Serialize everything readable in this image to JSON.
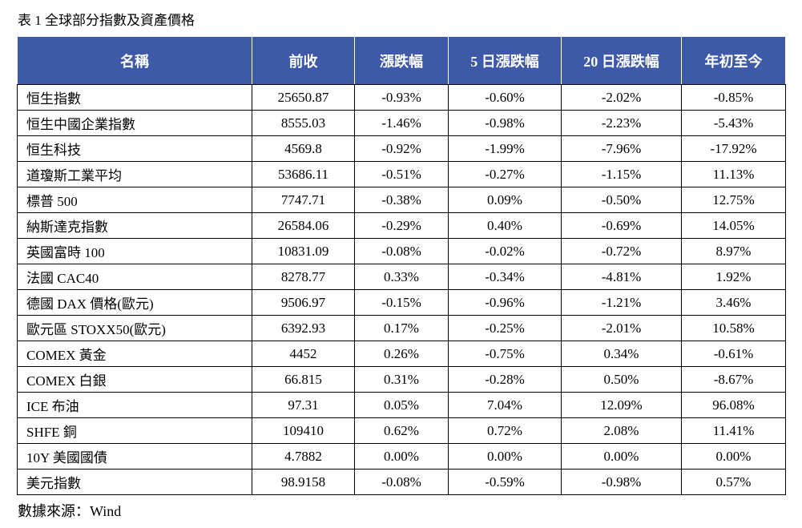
{
  "caption": "表 1 全球部分指數及資產價格",
  "headers": [
    "名稱",
    "前收",
    "漲跌幅",
    "5 日漲跌幅",
    "20 日漲跌幅",
    "年初至今"
  ],
  "rows": [
    [
      "恒生指數",
      "25650.87",
      "-0.93%",
      "-0.60%",
      "-2.02%",
      "-0.85%"
    ],
    [
      "恒生中國企業指數",
      "8555.03",
      "-1.46%",
      "-0.98%",
      "-2.23%",
      "-5.43%"
    ],
    [
      "恒生科技",
      "4569.8",
      "-0.92%",
      "-1.99%",
      "-7.96%",
      "-17.92%"
    ],
    [
      "道瓊斯工業平均",
      "53686.11",
      "-0.51%",
      "-0.27%",
      "-1.15%",
      "11.13%"
    ],
    [
      "標普 500",
      "7747.71",
      "-0.38%",
      "0.09%",
      "-0.50%",
      "12.75%"
    ],
    [
      "納斯達克指數",
      "26584.06",
      "-0.29%",
      "0.40%",
      "-0.69%",
      "14.05%"
    ],
    [
      "英國富時 100",
      "10831.09",
      "-0.08%",
      "-0.02%",
      "-0.72%",
      "8.97%"
    ],
    [
      "法國 CAC40",
      "8278.77",
      "0.33%",
      "-0.34%",
      "-4.81%",
      "1.92%"
    ],
    [
      "德國 DAX 價格(歐元)",
      "9506.97",
      "-0.15%",
      "-0.96%",
      "-1.21%",
      "3.46%"
    ],
    [
      "歐元區 STOXX50(歐元)",
      "6392.93",
      "0.17%",
      "-0.25%",
      "-2.01%",
      "10.58%"
    ],
    [
      "COMEX 黃金",
      "4452",
      "0.26%",
      "-0.75%",
      "0.34%",
      "-0.61%"
    ],
    [
      "COMEX 白銀",
      "66.815",
      "0.31%",
      "-0.28%",
      "0.50%",
      "-8.67%"
    ],
    [
      "ICE 布油",
      "97.31",
      "0.05%",
      "7.04%",
      "12.09%",
      "96.08%"
    ],
    [
      "SHFE 銅",
      "109410",
      "0.62%",
      "0.72%",
      "2.08%",
      "11.41%"
    ],
    [
      "10Y  美國國債",
      "4.7882",
      "0.00%",
      "0.00%",
      "0.00%",
      "0.00%"
    ],
    [
      "美元指數",
      "98.9158",
      "-0.08%",
      "-0.59%",
      "-0.98%",
      "0.57%"
    ]
  ],
  "source": "數據來源：Wind",
  "colors": {
    "header_bg": "#3d59a7",
    "header_text": "#ffffff",
    "border": "#000000"
  }
}
